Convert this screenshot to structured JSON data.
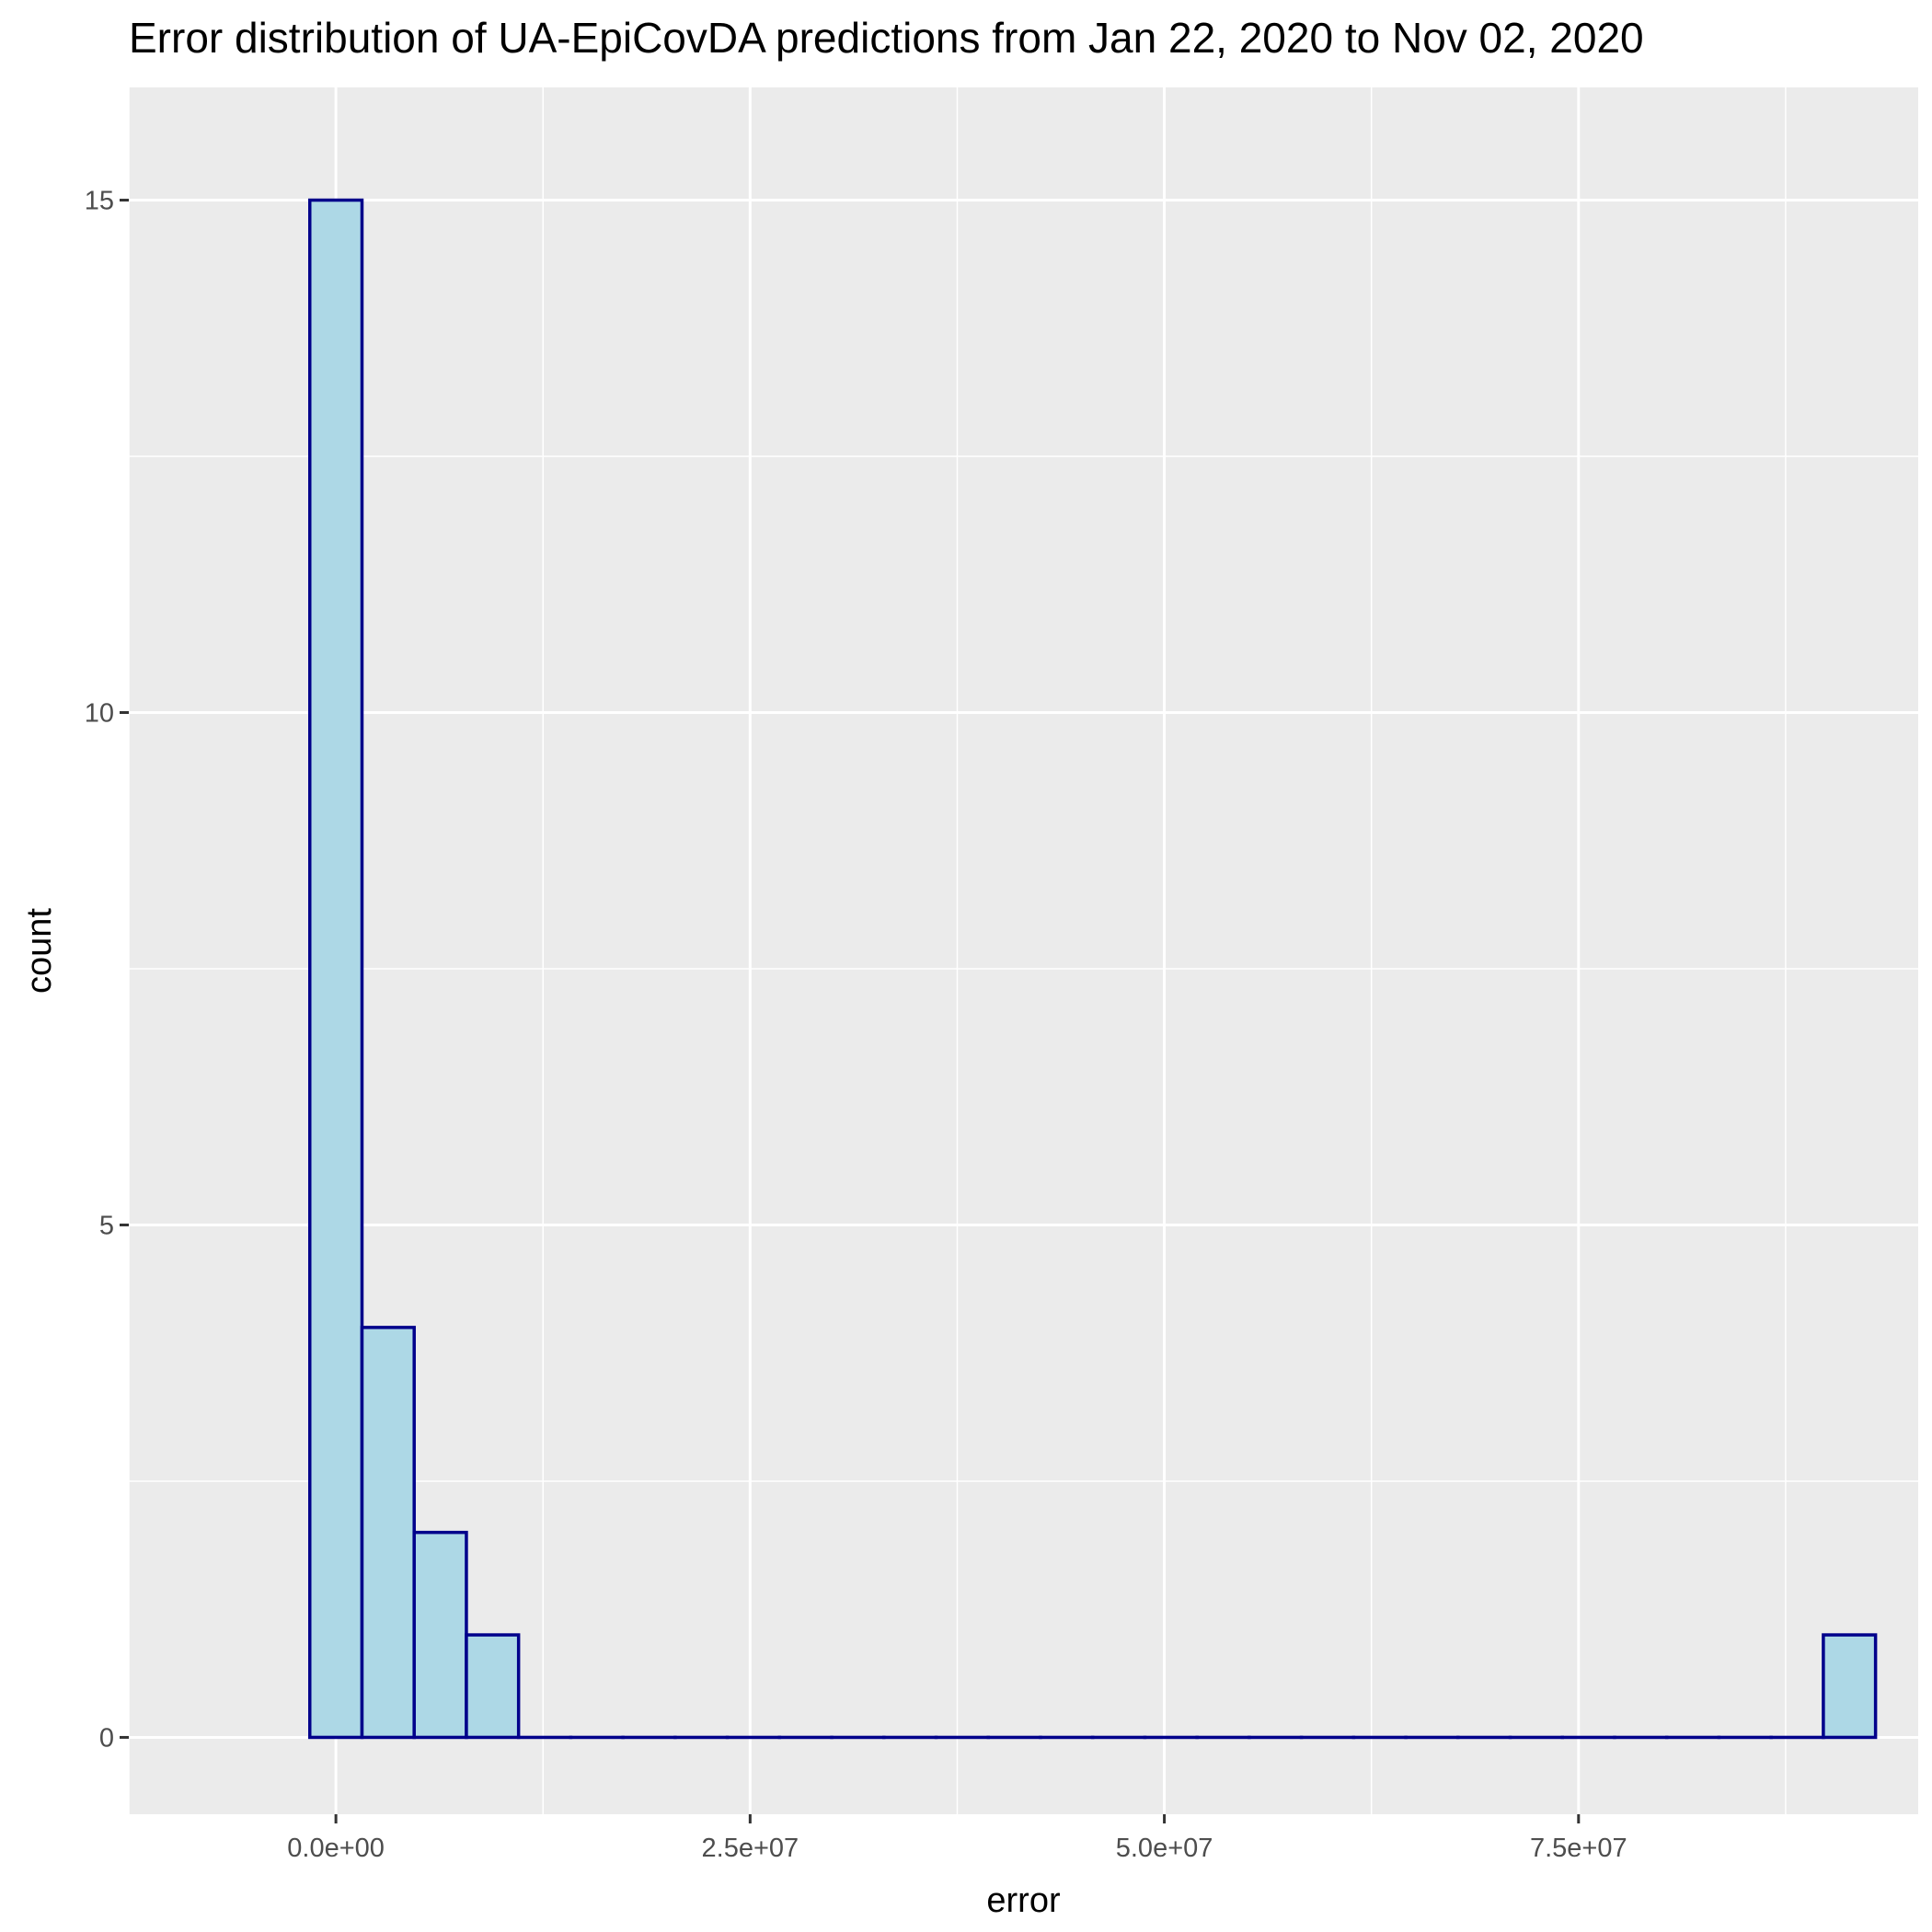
{
  "chart_data": {
    "type": "bar",
    "title": "Error distribution of UA-EpiCovDA predictions from Jan 22, 2020 to Nov 02, 2020",
    "xlabel": "error",
    "ylabel": "count",
    "xlim": [
      -12500000,
      95500000
    ],
    "ylim": [
      -0.75,
      16.1
    ],
    "x_ticks": [
      {
        "value": 0,
        "label": "0.0e+00"
      },
      {
        "value": 25000000,
        "label": "2.5e+07"
      },
      {
        "value": 50000000,
        "label": "5.0e+07"
      },
      {
        "value": 75000000,
        "label": "7.5e+07"
      }
    ],
    "y_ticks": [
      {
        "value": 0,
        "label": "0"
      },
      {
        "value": 5,
        "label": "5"
      },
      {
        "value": 10,
        "label": "10"
      },
      {
        "value": 15,
        "label": "15"
      }
    ],
    "bin_width": 3150000,
    "bins": [
      {
        "x_start": -1575000,
        "count": 15
      },
      {
        "x_start": 1575000,
        "count": 4
      },
      {
        "x_start": 4725000,
        "count": 2
      },
      {
        "x_start": 7875000,
        "count": 1
      },
      {
        "x_start": 11025000,
        "count": 0
      },
      {
        "x_start": 14175000,
        "count": 0
      },
      {
        "x_start": 17325000,
        "count": 0
      },
      {
        "x_start": 20475000,
        "count": 0
      },
      {
        "x_start": 23625000,
        "count": 0
      },
      {
        "x_start": 26775000,
        "count": 0
      },
      {
        "x_start": 29925000,
        "count": 0
      },
      {
        "x_start": 33075000,
        "count": 0
      },
      {
        "x_start": 36225000,
        "count": 0
      },
      {
        "x_start": 39375000,
        "count": 0
      },
      {
        "x_start": 42525000,
        "count": 0
      },
      {
        "x_start": 45675000,
        "count": 0
      },
      {
        "x_start": 48825000,
        "count": 0
      },
      {
        "x_start": 51975000,
        "count": 0
      },
      {
        "x_start": 55125000,
        "count": 0
      },
      {
        "x_start": 58275000,
        "count": 0
      },
      {
        "x_start": 61425000,
        "count": 0
      },
      {
        "x_start": 64575000,
        "count": 0
      },
      {
        "x_start": 67725000,
        "count": 0
      },
      {
        "x_start": 70875000,
        "count": 0
      },
      {
        "x_start": 74025000,
        "count": 0
      },
      {
        "x_start": 77175000,
        "count": 0
      },
      {
        "x_start": 80325000,
        "count": 0
      },
      {
        "x_start": 83475000,
        "count": 0
      },
      {
        "x_start": 86625000,
        "count": 0
      },
      {
        "x_start": 89775000,
        "count": 1
      }
    ],
    "grid": true,
    "legend": "none",
    "colors": {
      "bar_fill": "#add8e6",
      "bar_outline": "#00008b",
      "panel_background": "#ebebeb",
      "grid": "#ffffff"
    }
  }
}
